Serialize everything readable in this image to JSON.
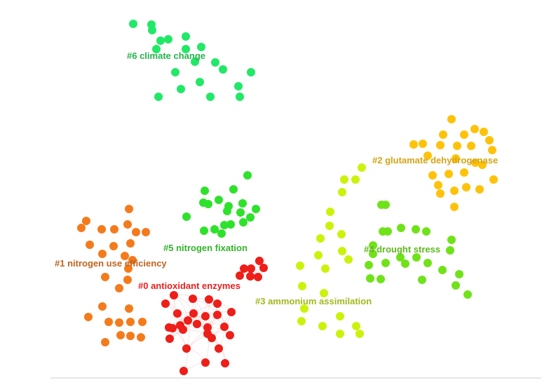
{
  "clusters": [
    {
      "id": "c0",
      "label": "#0 antioxidant enzymes",
      "color": "#e8201f",
      "node_color": "#ee1e18",
      "edge_color": "#f0b0b0",
      "node_count": 33
    },
    {
      "id": "c1",
      "label": "#1 nitrogen use efficiency",
      "color": "#c0641e",
      "node_color": "#f47b1c",
      "node_count": 27
    },
    {
      "id": "c2",
      "label": "#2 glutamate dehydrogenase",
      "color": "#d4a417",
      "node_color": "#fec20a",
      "node_count": 26
    },
    {
      "id": "c3",
      "label": "#3 ammonium assimilation",
      "color": "#a3b81e",
      "node_color": "#ccf20c",
      "node_count": 22
    },
    {
      "id": "c4",
      "label": "#4 drought stress",
      "color": "#5fb81e",
      "node_color": "#70e21a",
      "node_count": 17
    },
    {
      "id": "c5",
      "label": "#5 nitrogen fixation",
      "color": "#30b52a",
      "node_color": "#2ee22c",
      "node_count": 25
    },
    {
      "id": "c6",
      "label": "#6 climate change",
      "color": "#22b44a",
      "node_color": "#22e868",
      "node_count": 20
    }
  ]
}
